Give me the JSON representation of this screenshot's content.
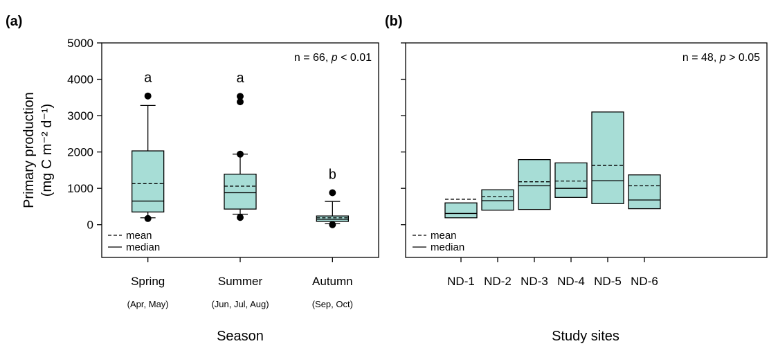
{
  "chart_data": [
    {
      "panel_label": "(a)",
      "type": "box",
      "xlabel": "Season",
      "ylabel_line1": "Primary production",
      "ylabel_unit": "(mg C m⁻² d⁻¹)",
      "ylim": [
        -900,
        5000
      ],
      "yticks": [
        0,
        1000,
        2000,
        3000,
        4000,
        5000
      ],
      "stat_text": "n = 66, p < 0.01",
      "stat_prefix": "n = 66, ",
      "stat_p": "p",
      "stat_suffix": " < 0.01",
      "legend": {
        "mean": "mean",
        "median": "median",
        "position": "bottom-left"
      },
      "categories": [
        "Spring",
        "Summer",
        "Autumn"
      ],
      "sublabels": [
        "(Apr, May)",
        "(Jun, Jul, Aug)",
        "(Sep, Oct)"
      ],
      "letters": [
        "a",
        "a",
        "b"
      ],
      "boxes": [
        {
          "category": "Spring",
          "q1": 350,
          "median": 650,
          "q3": 2030,
          "mean": 1130,
          "whisker_low": 190,
          "whisker_high": 3280,
          "outliers": [
            3540,
            170
          ]
        },
        {
          "category": "Summer",
          "q1": 430,
          "median": 880,
          "q3": 1390,
          "mean": 1060,
          "whisker_low": 290,
          "whisker_high": 1940,
          "outliers": [
            3530,
            3380,
            1940,
            200
          ]
        },
        {
          "category": "Autumn",
          "q1": 90,
          "median": 150,
          "q3": 240,
          "mean": 190,
          "whisker_low": 30,
          "whisker_high": 640,
          "outliers": [
            880,
            0
          ]
        }
      ]
    },
    {
      "panel_label": "(b)",
      "type": "box",
      "xlabel": "Study sites",
      "ylim": [
        -900,
        5000
      ],
      "stat_text": "n = 48, p > 0.05",
      "stat_prefix": "n = 48, ",
      "stat_p": "p",
      "stat_suffix": " > 0.05",
      "legend": {
        "mean": "mean",
        "median": "median",
        "position": "bottom-left"
      },
      "categories": [
        "ND-1",
        "ND-2",
        "ND-3",
        "ND-4",
        "ND-5",
        "ND-6"
      ],
      "boxes": [
        {
          "category": "ND-1",
          "q1": 190,
          "median": 310,
          "q3": 600,
          "mean": 700
        },
        {
          "category": "ND-2",
          "q1": 400,
          "median": 660,
          "q3": 960,
          "mean": 770
        },
        {
          "category": "ND-3",
          "q1": 420,
          "median": 1070,
          "q3": 1790,
          "mean": 1180
        },
        {
          "category": "ND-4",
          "q1": 750,
          "median": 1000,
          "q3": 1700,
          "mean": 1200
        },
        {
          "category": "ND-5",
          "q1": 580,
          "median": 1210,
          "q3": 3100,
          "mean": 1630
        },
        {
          "category": "ND-6",
          "q1": 440,
          "median": 680,
          "q3": 1370,
          "mean": 1070
        }
      ]
    }
  ]
}
